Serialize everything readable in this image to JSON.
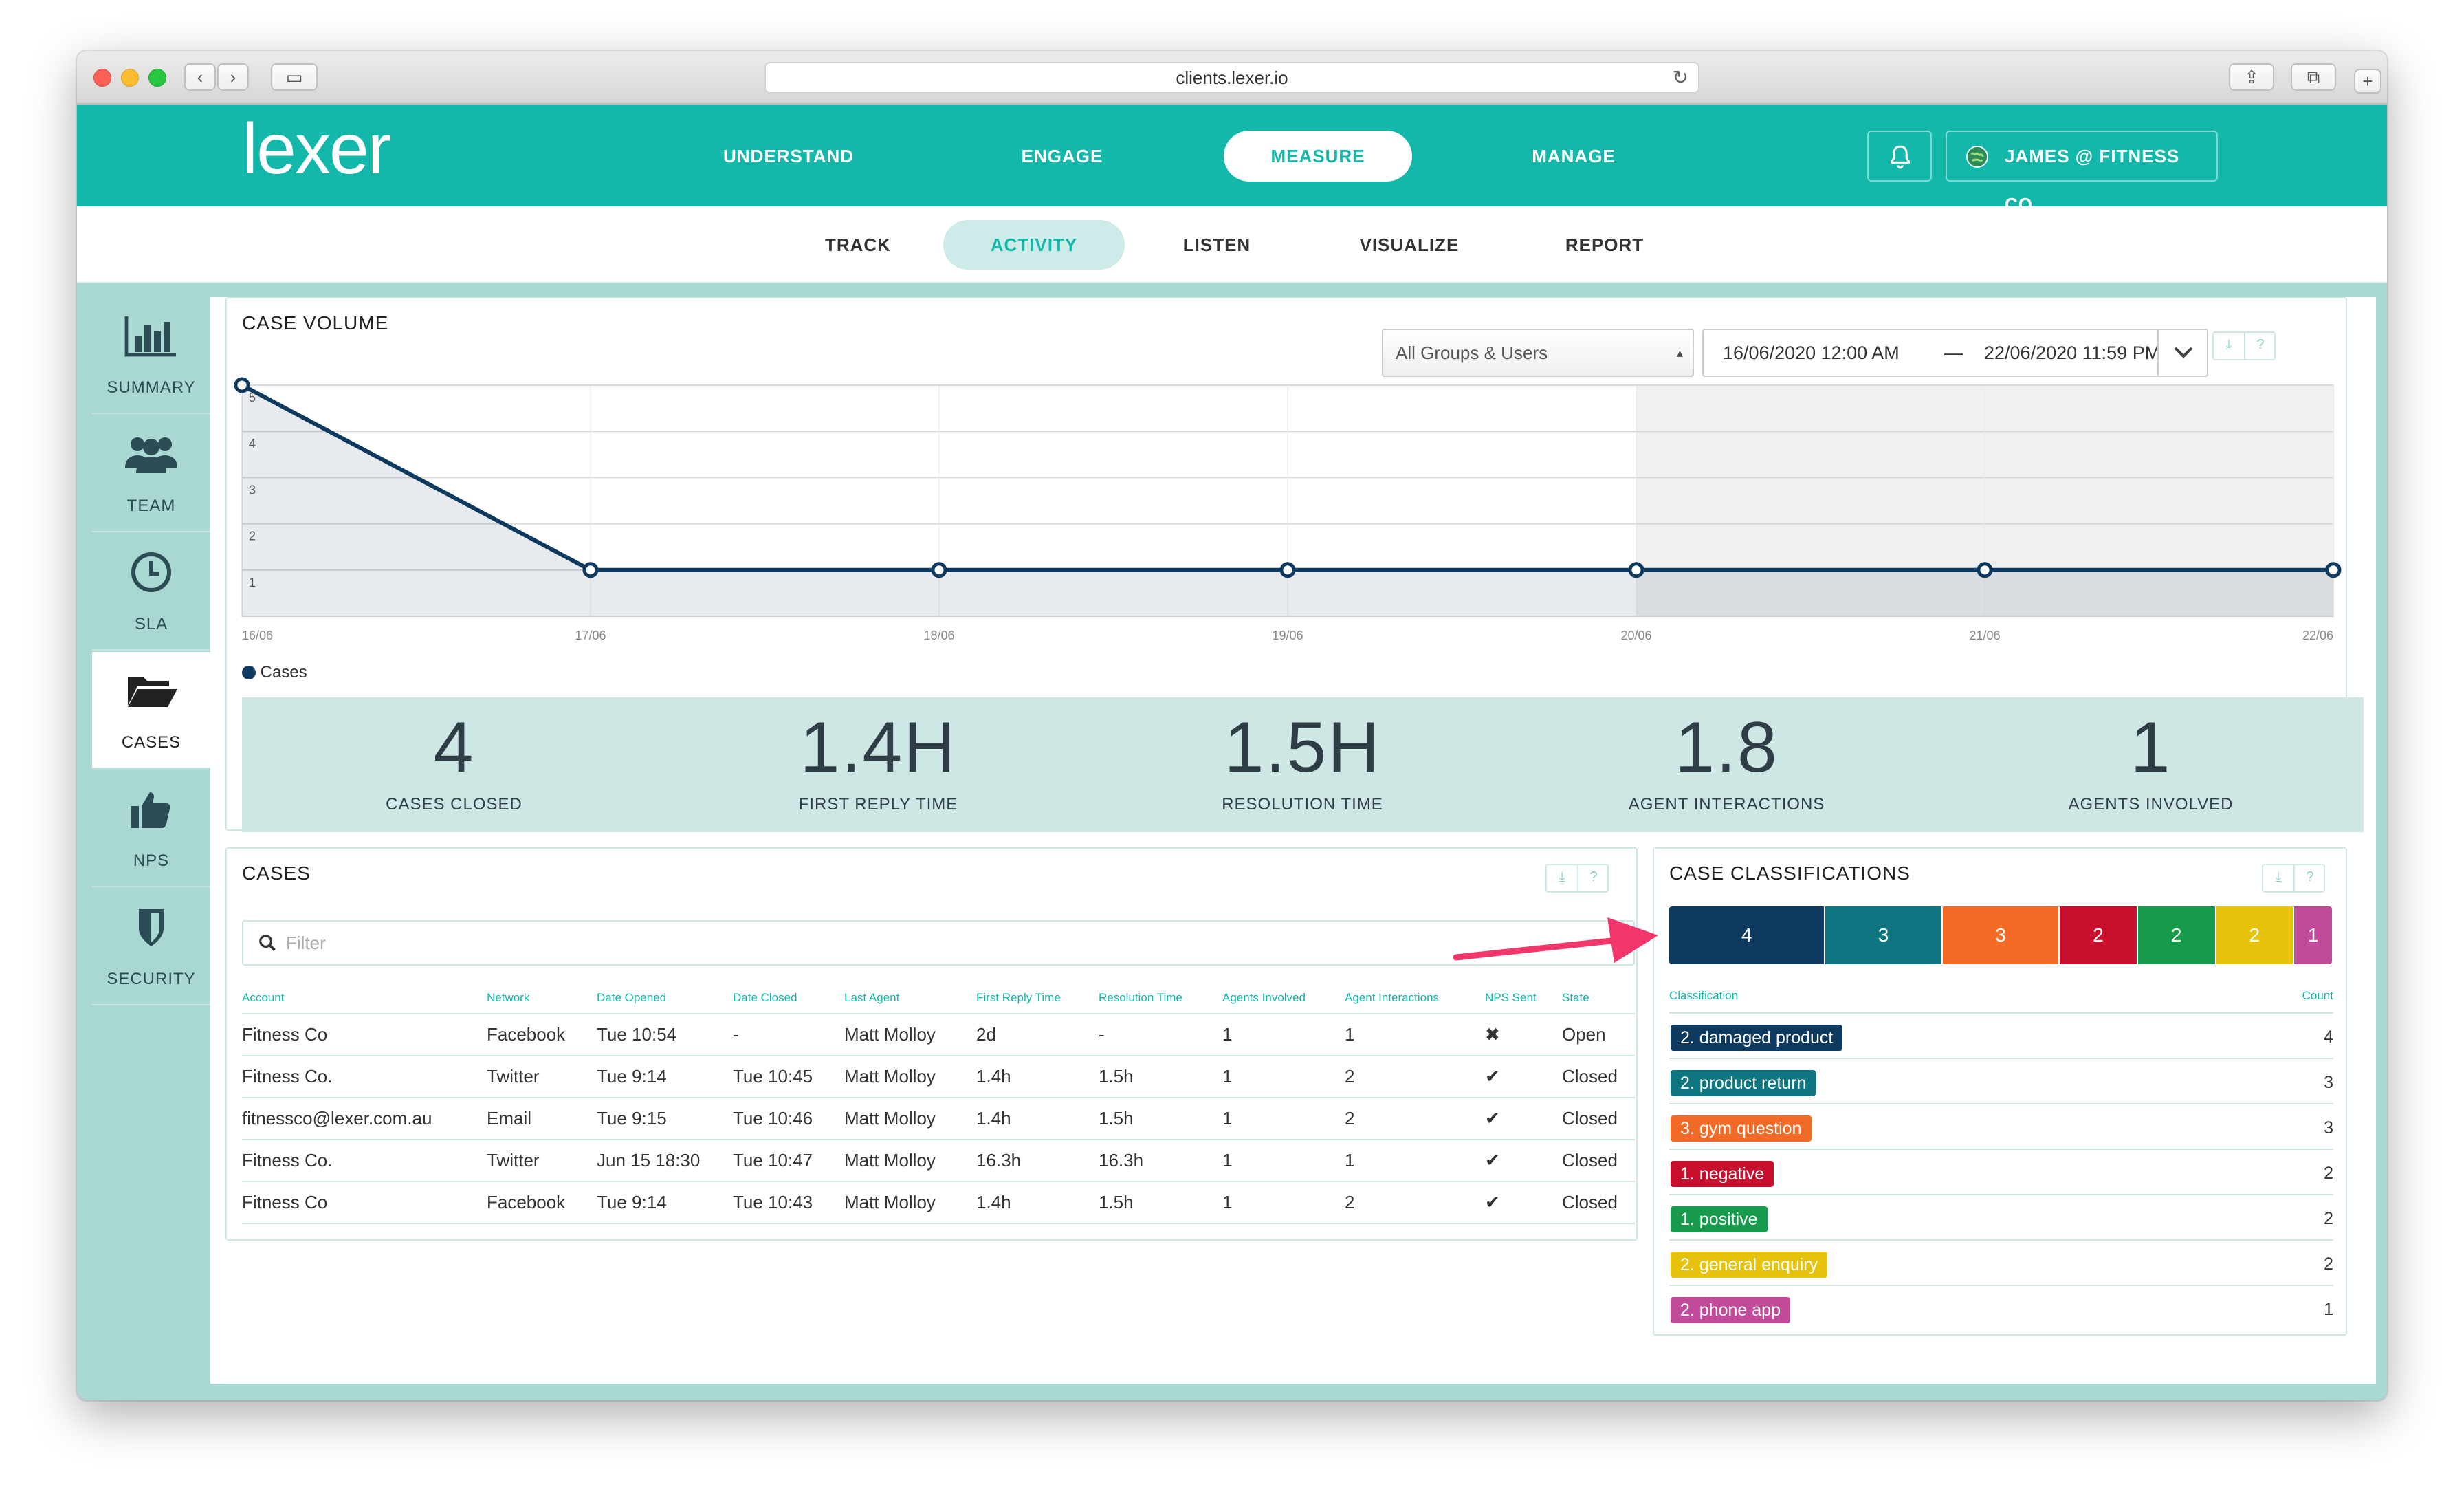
{
  "browser": {
    "url": "clients.lexer.io"
  },
  "app": {
    "logo_text": "lexer"
  },
  "topnav": {
    "items": [
      {
        "label": "UNDERSTAND",
        "active": false
      },
      {
        "label": "ENGAGE",
        "active": false
      },
      {
        "label": "MEASURE",
        "active": true
      },
      {
        "label": "MANAGE",
        "active": false
      }
    ],
    "user_label": "JAMES @ FITNESS CO."
  },
  "subnav": {
    "items": [
      {
        "label": "TRACK",
        "active": false
      },
      {
        "label": "ACTIVITY",
        "active": true
      },
      {
        "label": "LISTEN",
        "active": false
      },
      {
        "label": "VISUALIZE",
        "active": false
      },
      {
        "label": "REPORT",
        "active": false
      }
    ]
  },
  "sidebar": {
    "items": [
      {
        "label": "SUMMARY",
        "icon": "bar-chart-icon",
        "active": false
      },
      {
        "label": "TEAM",
        "icon": "team-icon",
        "active": false
      },
      {
        "label": "SLA",
        "icon": "clock-icon",
        "active": false
      },
      {
        "label": "CASES",
        "icon": "folder-open-icon",
        "active": true
      },
      {
        "label": "NPS",
        "icon": "thumbs-up-icon",
        "active": false
      },
      {
        "label": "SECURITY",
        "icon": "shield-icon",
        "active": false
      }
    ]
  },
  "case_volume": {
    "title": "CASE VOLUME",
    "group_select": "All Groups & Users",
    "date_from": "16/06/2020 12:00 AM",
    "date_separator": "—",
    "date_to": "22/06/2020 11:59 PM",
    "download_icon": "download-icon",
    "help_label": "?",
    "legend_label": "Cases"
  },
  "chart_data": {
    "type": "line",
    "x": [
      "16/06",
      "17/06",
      "18/06",
      "19/06",
      "20/06",
      "21/06",
      "22/06"
    ],
    "series": [
      {
        "name": "Cases",
        "values": [
          5,
          1,
          1,
          1,
          1,
          1,
          1
        ]
      }
    ],
    "y_ticks": [
      "1",
      "2",
      "3",
      "4",
      "5"
    ],
    "ylim": [
      0,
      5
    ],
    "shaded_from_x": "20/06",
    "line_color": "#0f3a5f",
    "grid": true,
    "legend": "bottom-left"
  },
  "stats": [
    {
      "value": "4",
      "label": "CASES CLOSED"
    },
    {
      "value": "1.4H",
      "label": "FIRST REPLY TIME"
    },
    {
      "value": "1.5H",
      "label": "RESOLUTION TIME"
    },
    {
      "value": "1.8",
      "label": "AGENT INTERACTIONS"
    },
    {
      "value": "1",
      "label": "AGENTS INVOLVED"
    }
  ],
  "cases": {
    "title": "CASES",
    "filter_placeholder": "Filter",
    "columns": [
      "Account",
      "Network",
      "Date Opened",
      "Date Closed",
      "Last Agent",
      "First Reply Time",
      "Resolution Time",
      "Agents Involved",
      "Agent Interactions",
      "NPS Sent",
      "State"
    ],
    "rows": [
      {
        "account": "Fitness Co",
        "network": "Facebook",
        "opened": "Tue 10:54",
        "closed": "-",
        "agent": "Matt Molloy",
        "first_reply": "2d",
        "resolution": "-",
        "agents": "1",
        "interactions": "1",
        "nps": "✖",
        "state": "Open"
      },
      {
        "account": "Fitness Co.",
        "network": "Twitter",
        "opened": "Tue 9:14",
        "closed": "Tue 10:45",
        "agent": "Matt Molloy",
        "first_reply": "1.4h",
        "resolution": "1.5h",
        "agents": "1",
        "interactions": "2",
        "nps": "✔",
        "state": "Closed"
      },
      {
        "account": "fitnessco@lexer.com.au",
        "network": "Email",
        "opened": "Tue 9:15",
        "closed": "Tue 10:46",
        "agent": "Matt Molloy",
        "first_reply": "1.4h",
        "resolution": "1.5h",
        "agents": "1",
        "interactions": "2",
        "nps": "✔",
        "state": "Closed"
      },
      {
        "account": "Fitness Co.",
        "network": "Twitter",
        "opened": "Jun 15 18:30",
        "closed": "Tue 10:47",
        "agent": "Matt Molloy",
        "first_reply": "16.3h",
        "resolution": "16.3h",
        "agents": "1",
        "interactions": "1",
        "nps": "✔",
        "state": "Closed"
      },
      {
        "account": "Fitness Co",
        "network": "Facebook",
        "opened": "Tue 9:14",
        "closed": "Tue 10:43",
        "agent": "Matt Molloy",
        "first_reply": "1.4h",
        "resolution": "1.5h",
        "agents": "1",
        "interactions": "2",
        "nps": "✔",
        "state": "Closed"
      }
    ]
  },
  "classifications": {
    "title": "CASE CLASSIFICATIONS",
    "col_classification": "Classification",
    "col_count": "Count",
    "items": [
      {
        "label": "2. damaged product",
        "count": "4",
        "color": "#0f3a5f"
      },
      {
        "label": "2. product return",
        "count": "3",
        "color": "#0f7681"
      },
      {
        "label": "3. gym question",
        "count": "3",
        "color": "#f26a25"
      },
      {
        "label": "1. negative",
        "count": "2",
        "color": "#c8102e"
      },
      {
        "label": "1. positive",
        "count": "2",
        "color": "#179a4c"
      },
      {
        "label": "2. general enquiry",
        "count": "2",
        "color": "#e6c30a"
      },
      {
        "label": "2. phone app",
        "count": "1",
        "color": "#c24a9b"
      }
    ]
  },
  "annotation": {
    "arrow_color": "#f0366b"
  }
}
